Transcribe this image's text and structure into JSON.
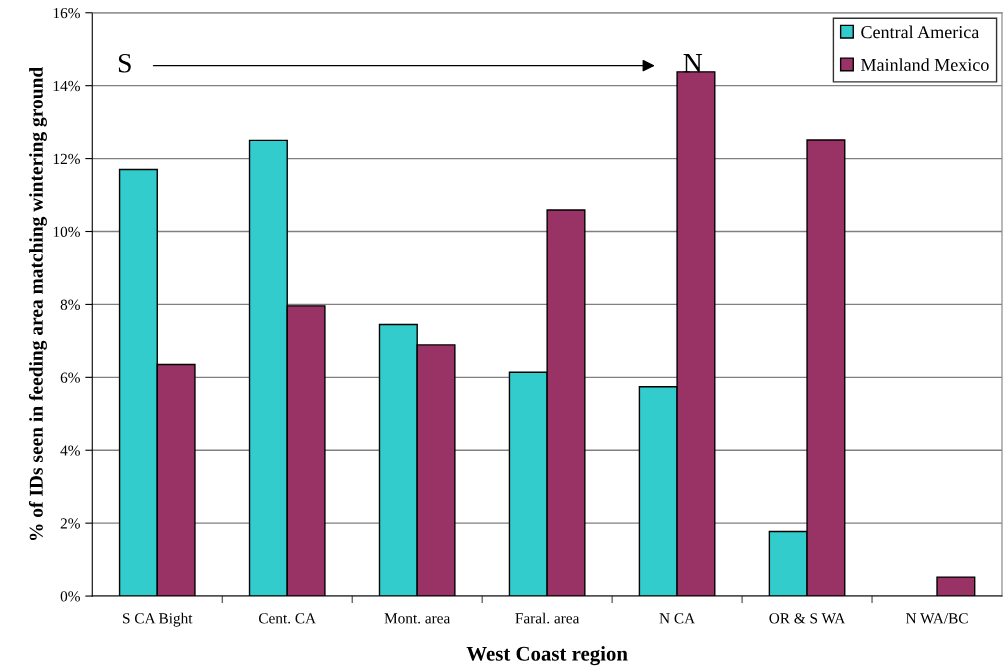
{
  "chart_data": {
    "type": "bar",
    "xlabel": "West Coast region",
    "ylabel": "% of IDs seen in feeding area matching wintering ground",
    "categories": [
      "S CA Bight",
      "Cent. CA",
      "Mont. area",
      "Faral. area",
      "N CA",
      "OR & S WA",
      "N WA/BC"
    ],
    "series": [
      {
        "name": "Central America",
        "color": "#33cccc",
        "values": [
          11.7,
          12.5,
          7.45,
          6.14,
          5.74,
          1.77,
          null
        ]
      },
      {
        "name": "Mainland Mexico",
        "color": "#993366",
        "values": [
          6.35,
          7.96,
          6.89,
          10.59,
          14.38,
          12.51,
          0.52
        ]
      }
    ],
    "ylim": [
      0,
      16
    ],
    "yticks": [
      {
        "value": 0,
        "label": "0%"
      },
      {
        "value": 2,
        "label": "2%"
      },
      {
        "value": 4,
        "label": "4%"
      },
      {
        "value": 6,
        "label": "6%"
      },
      {
        "value": 8,
        "label": "8%"
      },
      {
        "value": 10,
        "label": "10%"
      },
      {
        "value": 12,
        "label": "12%"
      },
      {
        "value": 14,
        "label": "14%"
      },
      {
        "value": 16,
        "label": "16%"
      }
    ],
    "grid": "y",
    "legend": "top right",
    "annotations": [
      "S",
      "N"
    ]
  }
}
